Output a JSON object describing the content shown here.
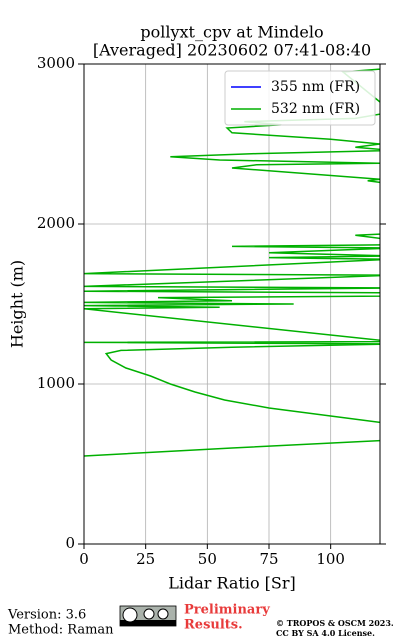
{
  "chart_data": {
    "type": "profile",
    "title": "pollyxt_cpv at Mindelo",
    "subtitle": "[Averaged] 20230602 07:41-08:40",
    "x_label": "Lidar Ratio [Sr]",
    "y_label": "Height (m)",
    "xlim": [
      0,
      120
    ],
    "xticks": [
      0,
      25,
      50,
      75,
      100
    ],
    "ylim": [
      0,
      3000
    ],
    "yticks": [
      0,
      1000,
      2000,
      3000
    ],
    "grid": true,
    "legend": "upper right",
    "series": [
      {
        "name": "355 nm (FR)",
        "color": "#0000ff",
        "heights": [],
        "values": []
      },
      {
        "name": "532 nm (FR)",
        "color": "#00b000",
        "heights": [
          550,
          600,
          650,
          700,
          760,
          800,
          850,
          900,
          950,
          1000,
          1050,
          1100,
          1150,
          1190,
          1210,
          1230,
          1250,
          1260,
          1265,
          1470,
          1480,
          1490,
          1500,
          1510,
          1520,
          1540,
          1550,
          1570,
          1580,
          1600,
          1610,
          1680,
          1690,
          1780,
          1785,
          1790,
          1800,
          1820,
          1850,
          1860,
          1870,
          1900,
          1930,
          1940,
          1950,
          2260,
          2270,
          2280,
          2350,
          2370,
          2380,
          2400,
          2420,
          2440,
          2460,
          2480,
          2500,
          2530,
          2570,
          2600,
          2620,
          2640,
          2660,
          2700,
          2950,
          2980
        ],
        "values": [
          0,
          60,
          125,
          150,
          120,
          100,
          75,
          57,
          45,
          35,
          27,
          17,
          11,
          9,
          15,
          60,
          125,
          0,
          125,
          0,
          55,
          0,
          85,
          0,
          60,
          30,
          130,
          120,
          0,
          125,
          0,
          125,
          0,
          125,
          95,
          75,
          125,
          75,
          125,
          60,
          125,
          125,
          110,
          125,
          125,
          120,
          115,
          120,
          60,
          70,
          120,
          55,
          35,
          70,
          125,
          110,
          120,
          100,
          60,
          58,
          80,
          65,
          110,
          125,
          105,
          130
        ]
      }
    ]
  },
  "footer": {
    "version": "Version: 3.6",
    "method": "Method: Raman",
    "preliminary": [
      "Preliminary",
      "Results."
    ],
    "copyright": [
      "© TROPOS & OSCM 2023.",
      "CC BY SA 4.0 License."
    ]
  }
}
